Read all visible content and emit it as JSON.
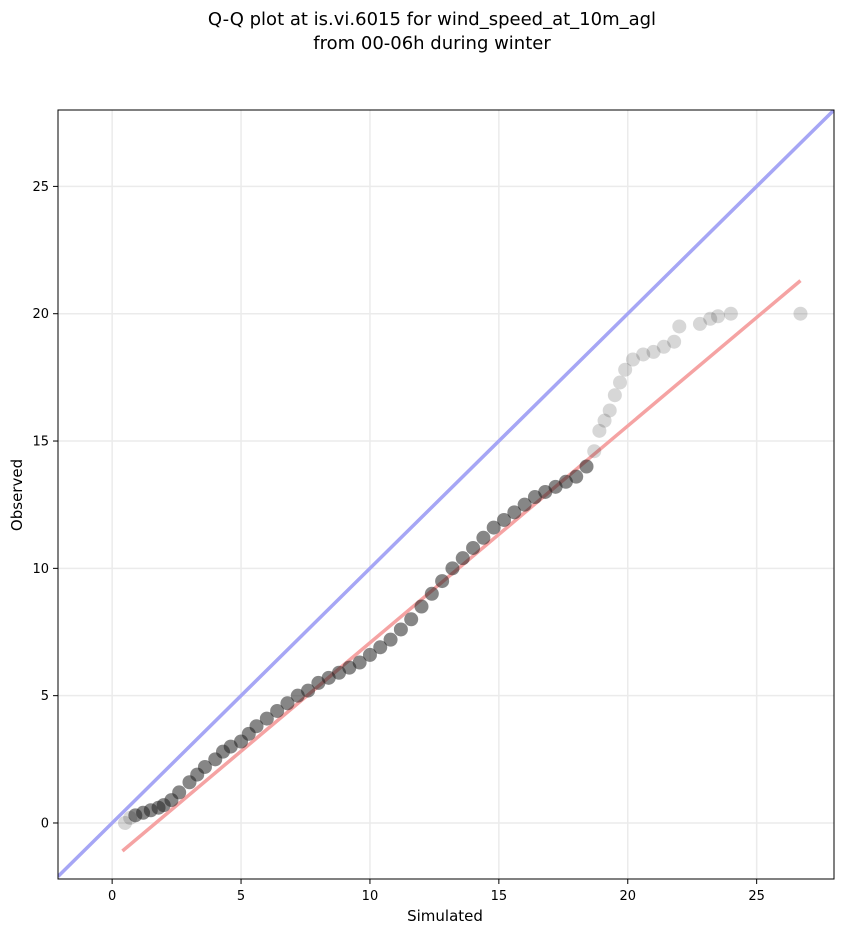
{
  "chart_data": {
    "type": "scatter",
    "title_lines": [
      "Q-Q plot at is.vi.6015 for wind_speed_at_10m_agl",
      "from 00-06h during winter"
    ],
    "xlabel": "Simulated",
    "ylabel": "Observed",
    "xlim": [
      -2.1,
      28
    ],
    "ylim": [
      -2.2,
      28
    ],
    "xticks": [
      0,
      5,
      10,
      15,
      20,
      25
    ],
    "yticks": [
      0,
      5,
      10,
      15,
      20,
      25
    ],
    "grid": true,
    "colors": {
      "points": "#222222",
      "identity_line": "#a6a6f5",
      "fit_line": "#f5a3a3",
      "grid": "#ebebeb"
    },
    "identity_line": {
      "x": [
        -2.1,
        28
      ],
      "y": [
        -2.1,
        28
      ]
    },
    "fit_line": {
      "x": [
        0.4,
        26.7
      ],
      "y": [
        -1.1,
        21.3
      ]
    },
    "points": {
      "x": [
        0.5,
        0.7,
        0.9,
        1.2,
        1.5,
        1.8,
        2.0,
        2.3,
        2.6,
        3.0,
        3.3,
        3.6,
        4.0,
        4.3,
        4.6,
        5.0,
        5.3,
        5.6,
        6.0,
        6.4,
        6.8,
        7.2,
        7.6,
        8.0,
        8.4,
        8.8,
        9.2,
        9.6,
        10.0,
        10.4,
        10.8,
        11.2,
        11.6,
        12.0,
        12.4,
        12.8,
        13.2,
        13.6,
        14.0,
        14.4,
        14.8,
        15.2,
        15.6,
        16.0,
        16.4,
        16.8,
        17.2,
        17.6,
        18.0,
        18.4,
        18.7,
        18.9,
        19.1,
        19.3,
        19.5,
        19.7,
        19.9,
        20.2,
        20.6,
        21.0,
        21.4,
        21.8,
        22.0,
        22.8,
        23.2,
        23.5,
        24.0,
        26.7
      ],
      "y": [
        0.0,
        0.2,
        0.3,
        0.4,
        0.5,
        0.6,
        0.7,
        0.9,
        1.2,
        1.6,
        1.9,
        2.2,
        2.5,
        2.8,
        3.0,
        3.2,
        3.5,
        3.8,
        4.1,
        4.4,
        4.7,
        5.0,
        5.2,
        5.5,
        5.7,
        5.9,
        6.1,
        6.3,
        6.6,
        6.9,
        7.2,
        7.6,
        8.0,
        8.5,
        9.0,
        9.5,
        10.0,
        10.4,
        10.8,
        11.2,
        11.6,
        11.9,
        12.2,
        12.5,
        12.8,
        13.0,
        13.2,
        13.4,
        13.6,
        14.0,
        14.6,
        15.4,
        15.8,
        16.2,
        16.8,
        17.3,
        17.8,
        18.2,
        18.4,
        18.5,
        18.7,
        18.9,
        19.5,
        19.6,
        19.8,
        19.9,
        20.0,
        20.0
      ]
    }
  }
}
